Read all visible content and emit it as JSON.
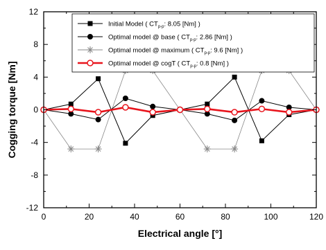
{
  "chart_data": {
    "type": "line",
    "title": "",
    "xlabel": "Electrical angle [°]",
    "ylabel": "Cogging torque [Nm]",
    "xlim": [
      0,
      120
    ],
    "ylim": [
      -12,
      12
    ],
    "xticks": [
      0,
      20,
      40,
      60,
      80,
      100,
      120
    ],
    "yticks": [
      -12,
      -8,
      -4,
      0,
      4,
      8,
      12
    ],
    "grid": false,
    "legend_position": "top-right",
    "series": [
      {
        "name": "Initial Model",
        "legend_prefix": "Initial Model ( CT",
        "legend_sub": "p-p",
        "legend_suffix": ": 8.05 [Nm] )",
        "marker": "square",
        "color": "#000000",
        "x": [
          0,
          12,
          24,
          36,
          48,
          60,
          72,
          84,
          96,
          108,
          120
        ],
        "y": [
          0,
          0.7,
          3.8,
          -4.1,
          -0.7,
          0,
          0.7,
          4.0,
          -3.8,
          -0.6,
          0
        ]
      },
      {
        "name": "Optimal model @ base",
        "legend_prefix": "Optimal model @ base ( CT",
        "legend_sub": "p-p",
        "legend_suffix": ": 2.86 [Nm] )",
        "marker": "circle",
        "color": "#000000",
        "x": [
          0,
          12,
          24,
          36,
          48,
          60,
          72,
          84,
          96,
          108,
          120
        ],
        "y": [
          0,
          -0.5,
          -1.2,
          1.4,
          0.4,
          0,
          -0.5,
          -1.3,
          1.1,
          0.3,
          0
        ]
      },
      {
        "name": "Optimal model @ maximum",
        "legend_prefix": "Optimal model @ maximum ( CT",
        "legend_sub": "p-p",
        "legend_suffix": ": 9.6 [Nm] )",
        "marker": "asterisk",
        "color": "#888888",
        "x": [
          0,
          12,
          24,
          36,
          48,
          60,
          72,
          84,
          96,
          108,
          120
        ],
        "y": [
          0,
          -4.8,
          -4.8,
          4.8,
          4.8,
          0,
          -4.8,
          -4.8,
          4.8,
          4.8,
          0
        ]
      },
      {
        "name": "Optimal model @ cogT",
        "legend_prefix": "Optimal model @ cogT ( CT",
        "legend_sub": "p-p",
        "legend_suffix": ": 0.8 [Nm] )",
        "marker": "circle-open",
        "color": "#e8141c",
        "x": [
          0,
          12,
          24,
          36,
          48,
          60,
          72,
          84,
          96,
          108,
          120
        ],
        "y": [
          0,
          0.1,
          -0.3,
          0.3,
          -0.3,
          0,
          0.1,
          -0.3,
          0.1,
          -0.3,
          0
        ]
      }
    ]
  }
}
